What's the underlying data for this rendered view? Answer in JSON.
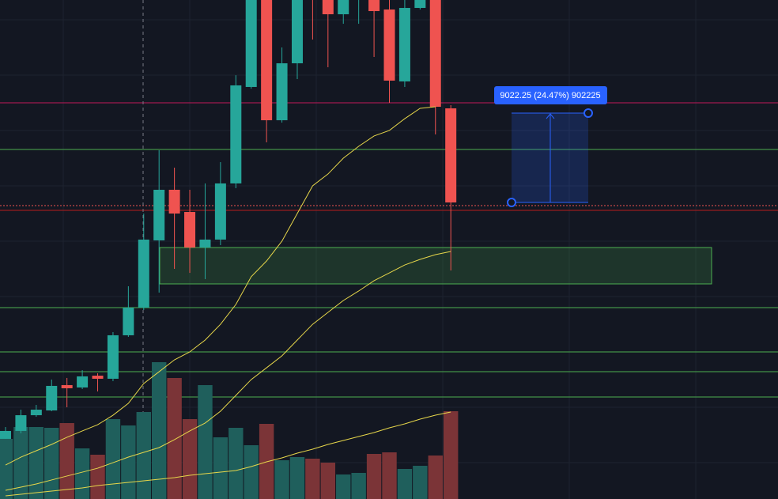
{
  "chart_data": {
    "type": "candlestick",
    "up_color": "#26a69a",
    "down_color": "#ef5350",
    "volume_up_color": "#1f5f5c",
    "volume_down_color": "#7b3437",
    "ma_color": "#e6d64a",
    "ylim": [
      6930,
      57310
    ],
    "volume_ylim": [
      0,
      200
    ],
    "candles": [
      {
        "open": 13000,
        "high": 14200,
        "low": 13000,
        "close": 13800
      },
      {
        "open": 13800,
        "high": 15950,
        "low": 13560,
        "close": 15390
      },
      {
        "open": 15390,
        "high": 16430,
        "low": 15230,
        "close": 15950
      },
      {
        "open": 15870,
        "high": 18990,
        "low": 15790,
        "close": 18350
      },
      {
        "open": 18430,
        "high": 19150,
        "low": 16190,
        "close": 18110
      },
      {
        "open": 18190,
        "high": 19940,
        "low": 18030,
        "close": 19310
      },
      {
        "open": 19380,
        "high": 19620,
        "low": 17790,
        "close": 19070
      },
      {
        "open": 19070,
        "high": 23780,
        "low": 18830,
        "close": 23460
      },
      {
        "open": 23460,
        "high": 28410,
        "low": 23300,
        "close": 26250
      },
      {
        "open": 26250,
        "high": 35750,
        "low": 26010,
        "close": 33120
      },
      {
        "open": 33040,
        "high": 42140,
        "low": 27770,
        "close": 38150
      },
      {
        "open": 38150,
        "high": 40380,
        "low": 30160,
        "close": 35750
      },
      {
        "open": 35910,
        "high": 38150,
        "low": 29760,
        "close": 32320
      },
      {
        "open": 32320,
        "high": 38790,
        "low": 29130,
        "close": 33120
      },
      {
        "open": 33120,
        "high": 40940,
        "low": 32560,
        "close": 38790
      },
      {
        "open": 38790,
        "high": 49720,
        "low": 38310,
        "close": 48690
      },
      {
        "open": 48530,
        "high": 60500,
        "low": 48360,
        "close": 58110
      },
      {
        "open": 58110,
        "high": 59700,
        "low": 42940,
        "close": 45170
      },
      {
        "open": 45170,
        "high": 52520,
        "low": 44930,
        "close": 50920
      },
      {
        "open": 50920,
        "high": 59700,
        "low": 49330,
        "close": 58110
      },
      {
        "open": 65290,
        "high": 66890,
        "low": 53320,
        "close": 58110
      },
      {
        "open": 58910,
        "high": 60500,
        "low": 50520,
        "close": 55870
      },
      {
        "open": 55870,
        "high": 59700,
        "low": 54910,
        "close": 58110
      },
      {
        "open": 58910,
        "high": 62900,
        "low": 54910,
        "close": 61300
      },
      {
        "open": 58910,
        "high": 60500,
        "low": 51560,
        "close": 56190
      },
      {
        "open": 56350,
        "high": 57310,
        "low": 46930,
        "close": 49170
      },
      {
        "open": 49090,
        "high": 58110,
        "low": 48530,
        "close": 56510
      },
      {
        "open": 56510,
        "high": 59700,
        "low": 56350,
        "close": 58110
      },
      {
        "open": 57310,
        "high": 58910,
        "low": 43740,
        "close": 46530
      },
      {
        "open": 46370,
        "high": 46690,
        "low": 30000,
        "close": 36870
      }
    ],
    "volume": [
      76,
      91,
      91,
      90,
      96,
      64,
      56,
      101,
      93,
      110,
      173,
      153,
      101,
      144,
      78,
      90,
      68,
      95,
      49,
      53,
      51,
      46,
      31,
      33,
      57,
      59,
      38,
      42,
      55,
      111
    ],
    "moving_averages": [
      {
        "values": [
          10360,
          11160,
          11800,
          12440,
          13160,
          13800,
          14430,
          15390,
          16590,
          18590,
          19780,
          20980,
          21780,
          22980,
          24570,
          26570,
          29370,
          30960,
          32960,
          35750,
          38550,
          39740,
          41340,
          42540,
          43580,
          44140,
          45330,
          46370,
          46530,
          null
        ]
      },
      {
        "values": [
          7810,
          8130,
          8450,
          8850,
          9250,
          9640,
          10040,
          10600,
          11160,
          11640,
          12120,
          12920,
          13800,
          14600,
          15790,
          17390,
          18990,
          20180,
          21380,
          22980,
          24570,
          25770,
          26970,
          27930,
          28970,
          29760,
          30560,
          31120,
          31600,
          31920
        ]
      }
    ],
    "volume_ma": [
      4,
      6,
      8,
      10,
      12,
      14,
      17,
      19,
      21,
      23,
      25,
      27,
      30,
      32,
      34,
      36,
      41,
      47,
      52,
      58,
      63,
      69,
      74,
      79,
      84,
      90,
      95,
      101,
      106,
      110
    ],
    "measure_label": "9022.25 (24.47%) 902225"
  }
}
